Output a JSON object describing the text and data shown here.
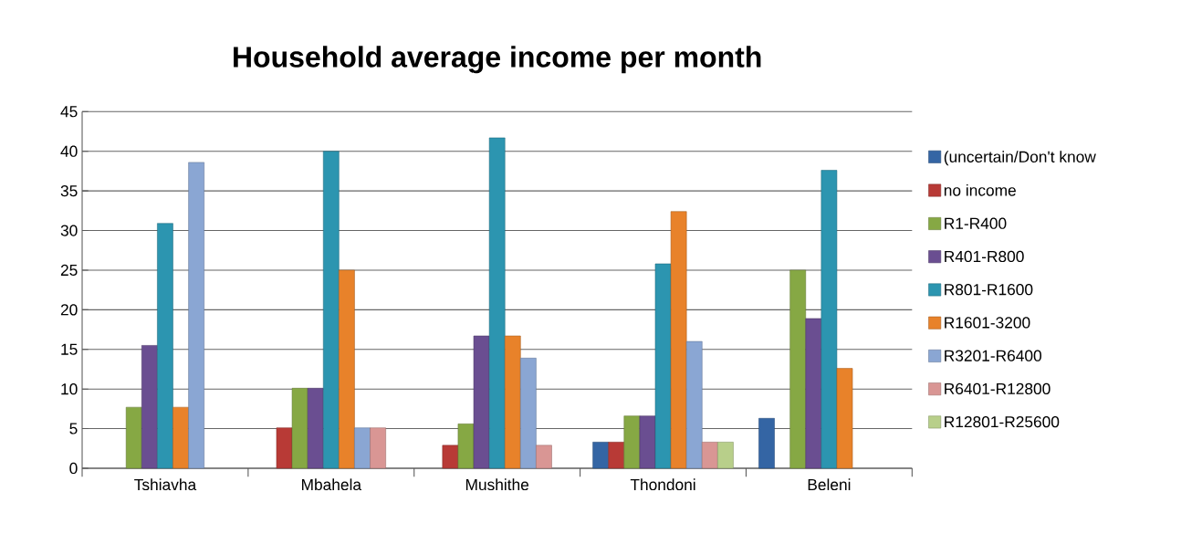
{
  "chart_data": {
    "type": "bar",
    "title": "Household average income per month",
    "categories": [
      "Tshiavha",
      "Mbahela",
      "Mushithe",
      "Thondoni",
      "Beleni"
    ],
    "series": [
      {
        "name": "(uncertain/Don't know",
        "color": "#3465a4",
        "values": [
          null,
          null,
          null,
          3.3,
          6.3
        ]
      },
      {
        "name": "no income",
        "color": "#b83a36",
        "values": [
          null,
          5.1,
          2.9,
          3.3,
          null
        ]
      },
      {
        "name": "R1-R400",
        "color": "#86a844",
        "values": [
          7.7,
          10.1,
          5.6,
          6.6,
          25.0
        ]
      },
      {
        "name": "R401-R800",
        "color": "#6a4e91",
        "values": [
          15.5,
          10.1,
          16.7,
          6.6,
          18.9
        ]
      },
      {
        "name": "R801-R1600",
        "color": "#2c95b0",
        "values": [
          30.9,
          40.0,
          41.7,
          25.8,
          37.6
        ]
      },
      {
        "name": "R1601-3200",
        "color": "#e8822a",
        "values": [
          7.7,
          25.0,
          16.7,
          32.4,
          12.6
        ]
      },
      {
        "name": "R3201-R6400",
        "color": "#8aa6d3",
        "values": [
          38.6,
          5.1,
          13.9,
          16.0,
          null
        ]
      },
      {
        "name": "R6401-R12800",
        "color": "#d99694",
        "values": [
          null,
          5.1,
          2.9,
          3.3,
          null
        ]
      },
      {
        "name": "R12801-R25600",
        "color": "#b8cf8a",
        "values": [
          null,
          null,
          null,
          3.3,
          null
        ]
      }
    ],
    "ylim": [
      0,
      45
    ],
    "yticks": [
      0,
      5,
      10,
      15,
      20,
      25,
      30,
      35,
      40,
      45
    ],
    "grid": "y",
    "legend": "right"
  }
}
